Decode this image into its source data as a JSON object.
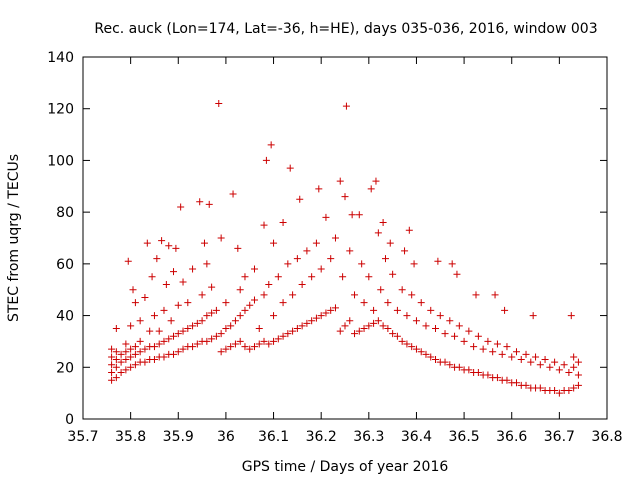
{
  "chart_data": {
    "type": "scatter",
    "title": "Rec. auck (Lon=174, Lat=-36, h=HE), days 035-036, 2016, window 003",
    "xlabel": "GPS time / Days of year 2016",
    "ylabel": "STEC from uqrg / TECUs",
    "xlim": [
      35.7,
      36.8
    ],
    "ylim": [
      0,
      140
    ],
    "x_ticks": [
      35.7,
      35.8,
      35.9,
      36.0,
      36.1,
      36.2,
      36.3,
      36.4,
      36.5,
      36.6,
      36.7,
      36.8
    ],
    "x_tick_labels": [
      "35.7",
      "35.8",
      "35.9",
      "36",
      "36.1",
      "36.2",
      "36.3",
      "36.4",
      "36.5",
      "36.6",
      "36.7",
      "36.8"
    ],
    "y_ticks": [
      0,
      20,
      40,
      60,
      80,
      100,
      120,
      140
    ],
    "y_tick_labels": [
      "0",
      "20",
      "40",
      "60",
      "80",
      "100",
      "120",
      "140"
    ],
    "marker": "+",
    "color": "#cc0000",
    "grid": false,
    "series": [
      {
        "name": "STEC",
        "points": [
          [
            35.76,
            15
          ],
          [
            35.76,
            18
          ],
          [
            35.76,
            21
          ],
          [
            35.76,
            24
          ],
          [
            35.76,
            27
          ],
          [
            35.77,
            16
          ],
          [
            35.77,
            20
          ],
          [
            35.77,
            23
          ],
          [
            35.77,
            26
          ],
          [
            35.77,
            35
          ],
          [
            35.78,
            18
          ],
          [
            35.78,
            22
          ],
          [
            35.78,
            25
          ],
          [
            35.79,
            19
          ],
          [
            35.79,
            23
          ],
          [
            35.79,
            26
          ],
          [
            35.79,
            29
          ],
          [
            35.795,
            61
          ],
          [
            35.8,
            20
          ],
          [
            35.8,
            24
          ],
          [
            35.8,
            27
          ],
          [
            35.8,
            36
          ],
          [
            35.805,
            50
          ],
          [
            35.81,
            21
          ],
          [
            35.81,
            25
          ],
          [
            35.81,
            28
          ],
          [
            35.81,
            45
          ],
          [
            35.82,
            22
          ],
          [
            35.82,
            26
          ],
          [
            35.82,
            30
          ],
          [
            35.82,
            38
          ],
          [
            35.83,
            22
          ],
          [
            35.83,
            27
          ],
          [
            35.83,
            47
          ],
          [
            35.835,
            68
          ],
          [
            35.84,
            23
          ],
          [
            35.84,
            28
          ],
          [
            35.84,
            34
          ],
          [
            35.845,
            55
          ],
          [
            35.85,
            23
          ],
          [
            35.85,
            28
          ],
          [
            35.85,
            40
          ],
          [
            35.855,
            62
          ],
          [
            35.86,
            24
          ],
          [
            35.86,
            29
          ],
          [
            35.86,
            34
          ],
          [
            35.865,
            69
          ],
          [
            35.87,
            24
          ],
          [
            35.87,
            30
          ],
          [
            35.87,
            42
          ],
          [
            35.875,
            52
          ],
          [
            35.88,
            25
          ],
          [
            35.88,
            31
          ],
          [
            35.88,
            67
          ],
          [
            35.885,
            38
          ],
          [
            35.89,
            25
          ],
          [
            35.89,
            32
          ],
          [
            35.89,
            57
          ],
          [
            35.895,
            66
          ],
          [
            35.9,
            26
          ],
          [
            35.9,
            33
          ],
          [
            35.9,
            44
          ],
          [
            35.905,
            82
          ],
          [
            35.91,
            27
          ],
          [
            35.91,
            34
          ],
          [
            35.91,
            53
          ],
          [
            35.92,
            28
          ],
          [
            35.92,
            35
          ],
          [
            35.92,
            45
          ],
          [
            35.93,
            28
          ],
          [
            35.93,
            36
          ],
          [
            35.93,
            58
          ],
          [
            35.94,
            29
          ],
          [
            35.94,
            37
          ],
          [
            35.945,
            84
          ],
          [
            35.95,
            30
          ],
          [
            35.95,
            38
          ],
          [
            35.95,
            48
          ],
          [
            35.955,
            68
          ],
          [
            35.96,
            30
          ],
          [
            35.96,
            40
          ],
          [
            35.96,
            60
          ],
          [
            35.965,
            83
          ],
          [
            35.97,
            31
          ],
          [
            35.97,
            41
          ],
          [
            35.97,
            51
          ],
          [
            35.98,
            32
          ],
          [
            35.98,
            42
          ],
          [
            35.985,
            122
          ],
          [
            35.99,
            26
          ],
          [
            35.99,
            33
          ],
          [
            35.99,
            70
          ],
          [
            36.0,
            27
          ],
          [
            36.0,
            35
          ],
          [
            36.0,
            45
          ],
          [
            36.01,
            28
          ],
          [
            36.01,
            36
          ],
          [
            36.015,
            87
          ],
          [
            36.02,
            29
          ],
          [
            36.02,
            38
          ],
          [
            36.025,
            66
          ],
          [
            36.03,
            30
          ],
          [
            36.03,
            40
          ],
          [
            36.03,
            50
          ],
          [
            36.04,
            28
          ],
          [
            36.04,
            42
          ],
          [
            36.04,
            55
          ],
          [
            36.05,
            27
          ],
          [
            36.05,
            44
          ],
          [
            36.06,
            28
          ],
          [
            36.06,
            46
          ],
          [
            36.06,
            58
          ],
          [
            36.07,
            29
          ],
          [
            36.07,
            35
          ],
          [
            36.08,
            30
          ],
          [
            36.08,
            48
          ],
          [
            36.08,
            75
          ],
          [
            36.085,
            100
          ],
          [
            36.09,
            29
          ],
          [
            36.09,
            52
          ],
          [
            36.095,
            106
          ],
          [
            36.1,
            30
          ],
          [
            36.1,
            40
          ],
          [
            36.1,
            68
          ],
          [
            36.11,
            31
          ],
          [
            36.11,
            55
          ],
          [
            36.12,
            32
          ],
          [
            36.12,
            45
          ],
          [
            36.12,
            76
          ],
          [
            36.13,
            33
          ],
          [
            36.13,
            60
          ],
          [
            36.135,
            97
          ],
          [
            36.14,
            34
          ],
          [
            36.14,
            48
          ],
          [
            36.15,
            35
          ],
          [
            36.15,
            62
          ],
          [
            36.155,
            85
          ],
          [
            36.16,
            36
          ],
          [
            36.16,
            52
          ],
          [
            36.17,
            37
          ],
          [
            36.17,
            65
          ],
          [
            36.18,
            38
          ],
          [
            36.18,
            55
          ],
          [
            36.19,
            39
          ],
          [
            36.19,
            68
          ],
          [
            36.195,
            89
          ],
          [
            36.2,
            40
          ],
          [
            36.2,
            58
          ],
          [
            36.21,
            41
          ],
          [
            36.21,
            78
          ],
          [
            36.22,
            42
          ],
          [
            36.22,
            62
          ],
          [
            36.23,
            43
          ],
          [
            36.23,
            70
          ],
          [
            36.24,
            34
          ],
          [
            36.24,
            92
          ],
          [
            36.245,
            55
          ],
          [
            36.25,
            36
          ],
          [
            36.25,
            86
          ],
          [
            36.253,
            121
          ],
          [
            36.26,
            38
          ],
          [
            36.26,
            65
          ],
          [
            36.265,
            79
          ],
          [
            36.27,
            33
          ],
          [
            36.27,
            48
          ],
          [
            36.28,
            34
          ],
          [
            36.28,
            79
          ],
          [
            36.285,
            60
          ],
          [
            36.29,
            35
          ],
          [
            36.29,
            45
          ],
          [
            36.3,
            36
          ],
          [
            36.3,
            55
          ],
          [
            36.305,
            89
          ],
          [
            36.31,
            37
          ],
          [
            36.31,
            42
          ],
          [
            36.315,
            92
          ],
          [
            36.32,
            38
          ],
          [
            36.32,
            72
          ],
          [
            36.325,
            50
          ],
          [
            36.33,
            36
          ],
          [
            36.33,
            76
          ],
          [
            36.335,
            62
          ],
          [
            36.34,
            35
          ],
          [
            36.34,
            45
          ],
          [
            36.345,
            68
          ],
          [
            36.35,
            33
          ],
          [
            36.35,
            56
          ],
          [
            36.36,
            32
          ],
          [
            36.36,
            42
          ],
          [
            36.37,
            30
          ],
          [
            36.37,
            50
          ],
          [
            36.375,
            65
          ],
          [
            36.38,
            29
          ],
          [
            36.38,
            40
          ],
          [
            36.385,
            73
          ],
          [
            36.39,
            28
          ],
          [
            36.39,
            48
          ],
          [
            36.395,
            60
          ],
          [
            36.4,
            27
          ],
          [
            36.4,
            38
          ],
          [
            36.41,
            26
          ],
          [
            36.41,
            45
          ],
          [
            36.42,
            25
          ],
          [
            36.42,
            36
          ],
          [
            36.43,
            24
          ],
          [
            36.43,
            42
          ],
          [
            36.44,
            23
          ],
          [
            36.44,
            35
          ],
          [
            36.445,
            61
          ],
          [
            36.45,
            22
          ],
          [
            36.45,
            40
          ],
          [
            36.46,
            22
          ],
          [
            36.46,
            33
          ],
          [
            36.47,
            21
          ],
          [
            36.47,
            38
          ],
          [
            36.475,
            60
          ],
          [
            36.48,
            20
          ],
          [
            36.48,
            32
          ],
          [
            36.485,
            56
          ],
          [
            36.49,
            20
          ],
          [
            36.49,
            36
          ],
          [
            36.5,
            19
          ],
          [
            36.5,
            30
          ],
          [
            36.51,
            19
          ],
          [
            36.51,
            34
          ],
          [
            36.52,
            18
          ],
          [
            36.52,
            28
          ],
          [
            36.525,
            48
          ],
          [
            36.53,
            18
          ],
          [
            36.53,
            32
          ],
          [
            36.54,
            17
          ],
          [
            36.54,
            27
          ],
          [
            36.55,
            17
          ],
          [
            36.55,
            30
          ],
          [
            36.56,
            16
          ],
          [
            36.56,
            26
          ],
          [
            36.565,
            48
          ],
          [
            36.57,
            16
          ],
          [
            36.57,
            29
          ],
          [
            36.58,
            15
          ],
          [
            36.58,
            25
          ],
          [
            36.585,
            42
          ],
          [
            36.59,
            15
          ],
          [
            36.59,
            28
          ],
          [
            36.6,
            14
          ],
          [
            36.6,
            24
          ],
          [
            36.61,
            14
          ],
          [
            36.61,
            26
          ],
          [
            36.62,
            13
          ],
          [
            36.62,
            23
          ],
          [
            36.63,
            13
          ],
          [
            36.63,
            25
          ],
          [
            36.64,
            12
          ],
          [
            36.64,
            22
          ],
          [
            36.645,
            40
          ],
          [
            36.65,
            12
          ],
          [
            36.65,
            24
          ],
          [
            36.66,
            12
          ],
          [
            36.66,
            21
          ],
          [
            36.67,
            11
          ],
          [
            36.67,
            23
          ],
          [
            36.68,
            11
          ],
          [
            36.68,
            20
          ],
          [
            36.69,
            11
          ],
          [
            36.69,
            22
          ],
          [
            36.7,
            10
          ],
          [
            36.7,
            19
          ],
          [
            36.71,
            11
          ],
          [
            36.71,
            21
          ],
          [
            36.72,
            11
          ],
          [
            36.72,
            18
          ],
          [
            36.725,
            40
          ],
          [
            36.73,
            12
          ],
          [
            36.73,
            20
          ],
          [
            36.73,
            24
          ],
          [
            36.74,
            13
          ],
          [
            36.74,
            17
          ],
          [
            36.74,
            22
          ]
        ]
      }
    ]
  }
}
